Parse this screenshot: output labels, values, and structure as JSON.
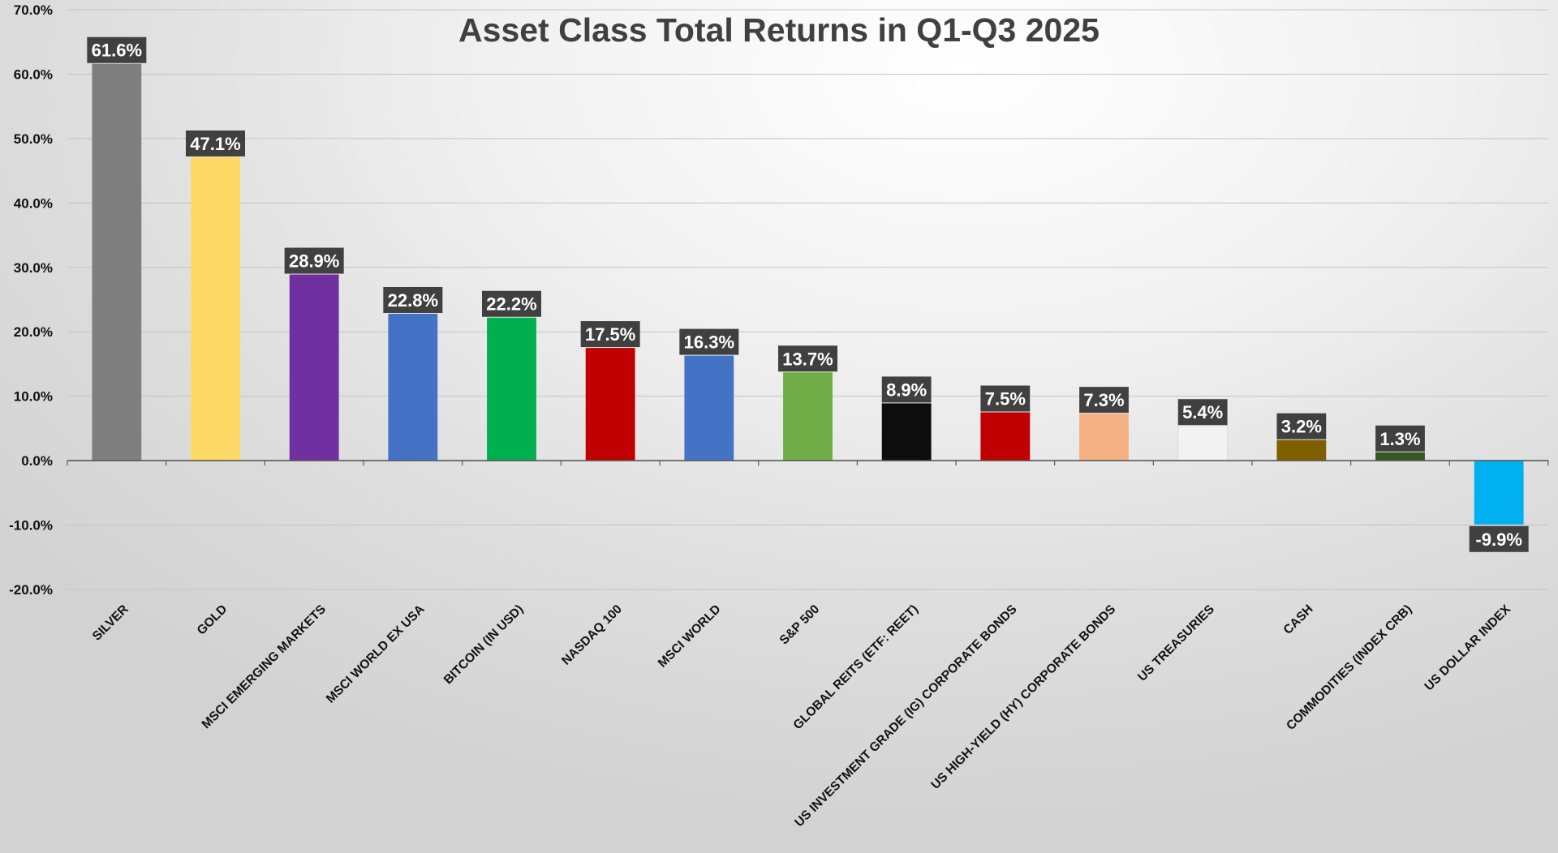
{
  "chart_data": {
    "type": "bar",
    "title": "Asset Class Total Returns in Q1-Q3 2025",
    "xlabel": "",
    "ylabel": "",
    "ylim": [
      -20,
      70
    ],
    "yticks": [
      70,
      60,
      50,
      40,
      30,
      20,
      10,
      0,
      -10,
      -20
    ],
    "ytick_labels": [
      "70.0%",
      "60.0%",
      "50.0%",
      "40.0%",
      "30.0%",
      "20.0%",
      "10.0%",
      "0.0%",
      "-10.0%",
      "-20.0%"
    ],
    "grid": true,
    "legend": "none",
    "categories": [
      "SILVER",
      "GOLD",
      "MSCI EMERGING MARKETS",
      "MSCI WORLD EX USA",
      "BITCOIN (IN USD)",
      "NASDAQ 100",
      "MSCI WORLD",
      "S&P 500",
      "GLOBAL REITS (ETF: REET)",
      "US INVESTMENT GRADE (IG) CORPORATE BONDS",
      "US HIGH-YIELD (HY) CORPORATE BONDS",
      "US TREASURIES",
      "CASH",
      "COMMODITIES (INDEX CRB)",
      "US DOLLAR INDEX"
    ],
    "values": [
      61.6,
      47.1,
      28.9,
      22.8,
      22.2,
      17.5,
      16.3,
      13.7,
      8.9,
      7.5,
      7.3,
      5.4,
      3.2,
      1.3,
      -9.9
    ],
    "data_labels": [
      "61.6%",
      "47.1%",
      "28.9%",
      "22.8%",
      "22.2%",
      "17.5%",
      "16.3%",
      "13.7%",
      "8.9%",
      "7.5%",
      "7.3%",
      "5.4%",
      "3.2%",
      "1.3%",
      "-9.9%"
    ],
    "colors": [
      "#7f7f7f",
      "#ffd966",
      "#7030a0",
      "#4472c4",
      "#00b050",
      "#c00000",
      "#4472c4",
      "#70ad47",
      "#0d0d0d",
      "#c00000",
      "#f4b183",
      "#f2f2f2",
      "#7f6000",
      "#375623",
      "#00b0f0"
    ],
    "label_background": "#404040"
  }
}
